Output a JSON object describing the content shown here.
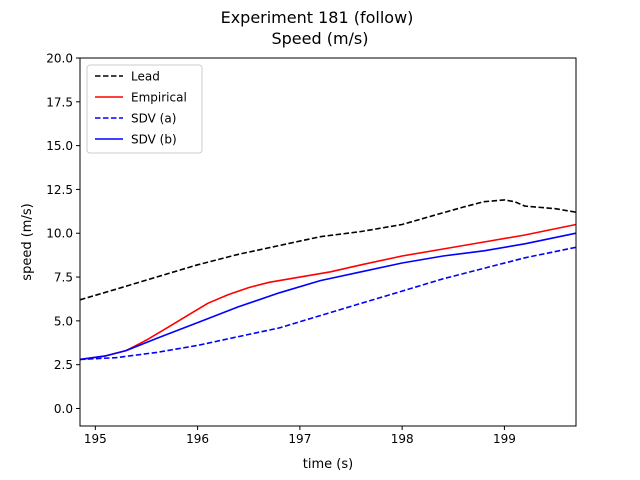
{
  "chart_data": {
    "type": "line",
    "title": "Experiment 181 (follow)",
    "subtitle": "Speed (m/s)",
    "xlabel": "time (s)",
    "ylabel": "speed (m/s)",
    "xlim": [
      194.85,
      199.7
    ],
    "ylim": [
      -1.0,
      20.0
    ],
    "xticks": [
      195,
      196,
      197,
      198,
      199
    ],
    "xtick_labels": [
      "195",
      "196",
      "197",
      "198",
      "199"
    ],
    "yticks": [
      0.0,
      2.5,
      5.0,
      7.5,
      10.0,
      12.5,
      15.0,
      17.5,
      20.0
    ],
    "ytick_labels": [
      "0.0",
      "2.5",
      "5.0",
      "7.5",
      "10.0",
      "12.5",
      "15.0",
      "17.5",
      "20.0"
    ],
    "grid": false,
    "legend_position": "top-left",
    "series": [
      {
        "name": "Lead",
        "color": "#000000",
        "style": "dashed",
        "x": [
          194.85,
          195.2,
          195.6,
          196.0,
          196.4,
          196.8,
          197.2,
          197.6,
          198.0,
          198.3,
          198.6,
          198.8,
          199.0,
          199.1,
          199.2,
          199.5,
          199.7
        ],
        "y": [
          6.2,
          6.8,
          7.5,
          8.2,
          8.8,
          9.3,
          9.8,
          10.1,
          10.5,
          11.0,
          11.5,
          11.8,
          11.9,
          11.8,
          11.55,
          11.4,
          11.2
        ]
      },
      {
        "name": "Empirical",
        "color": "#ff0000",
        "style": "solid",
        "x": [
          194.85,
          195.1,
          195.3,
          195.5,
          195.7,
          195.9,
          196.1,
          196.3,
          196.5,
          196.7,
          196.9,
          197.1,
          197.3,
          197.6,
          198.0,
          198.4,
          198.8,
          199.2,
          199.7
        ],
        "y": [
          2.8,
          3.0,
          3.3,
          3.9,
          4.6,
          5.3,
          6.0,
          6.5,
          6.9,
          7.2,
          7.4,
          7.6,
          7.8,
          8.2,
          8.7,
          9.1,
          9.5,
          9.9,
          10.5
        ]
      },
      {
        "name": "SDV (a)",
        "color": "#0000ff",
        "style": "dashed",
        "x": [
          194.85,
          195.2,
          195.6,
          196.0,
          196.4,
          196.8,
          197.2,
          197.6,
          198.0,
          198.4,
          198.8,
          199.2,
          199.7
        ],
        "y": [
          2.8,
          2.9,
          3.2,
          3.6,
          4.1,
          4.6,
          5.3,
          6.0,
          6.7,
          7.4,
          8.0,
          8.6,
          9.2
        ]
      },
      {
        "name": "SDV (b)",
        "color": "#0000ff",
        "style": "solid",
        "x": [
          194.85,
          195.1,
          195.3,
          195.6,
          196.0,
          196.4,
          196.8,
          197.2,
          197.6,
          198.0,
          198.4,
          198.8,
          199.2,
          199.7
        ],
        "y": [
          2.8,
          3.0,
          3.3,
          4.0,
          4.9,
          5.8,
          6.6,
          7.3,
          7.8,
          8.3,
          8.7,
          9.0,
          9.4,
          10.0
        ]
      }
    ]
  }
}
